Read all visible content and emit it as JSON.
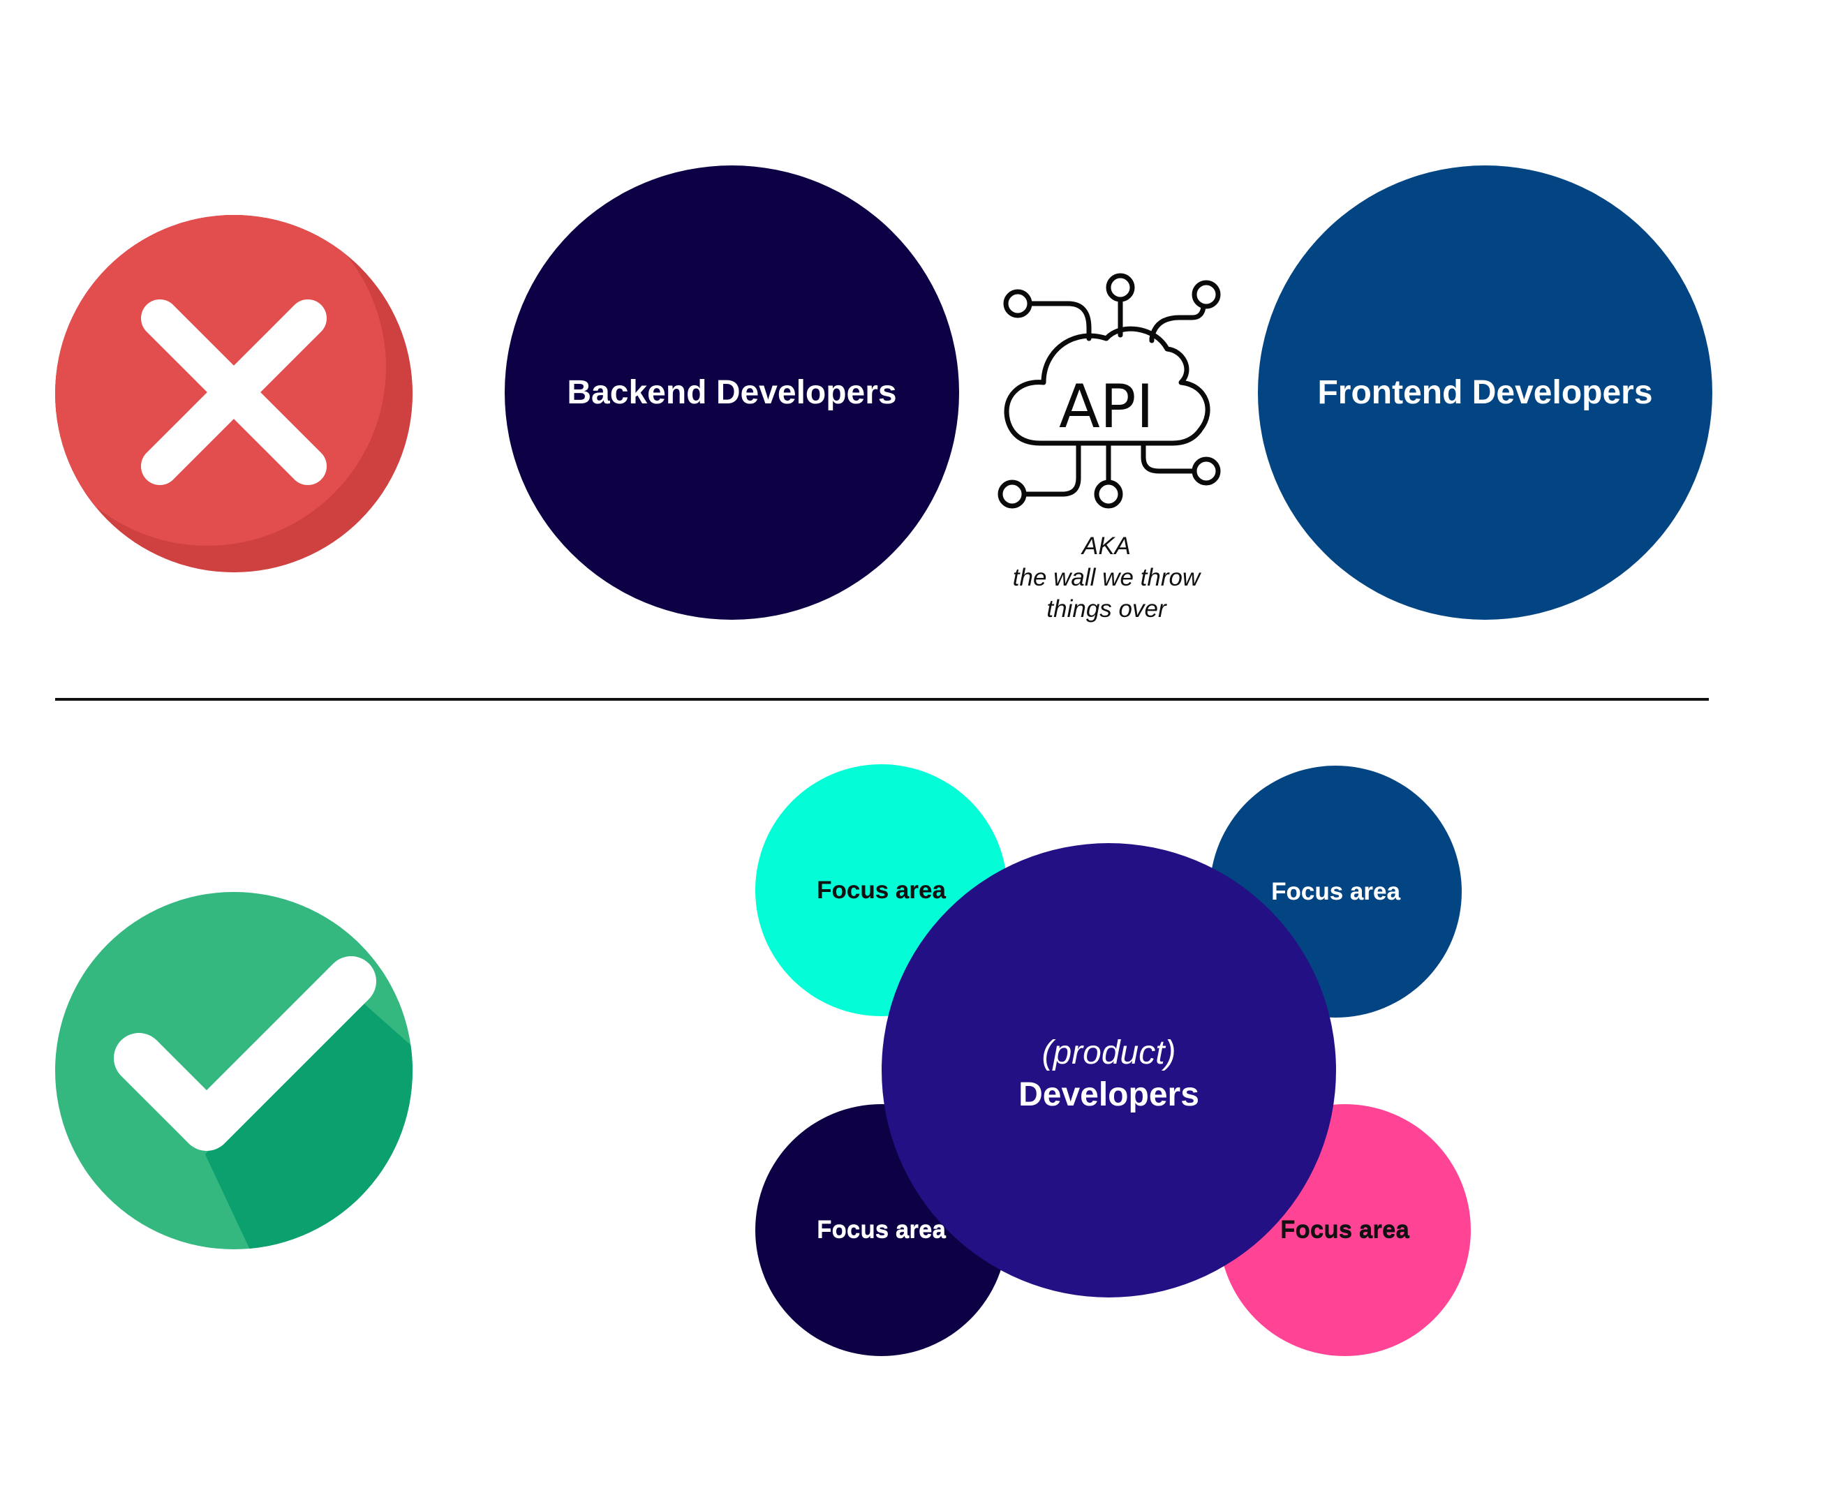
{
  "colors": {
    "cross_red": "#e24e4e",
    "cross_shadow": "#cf4040",
    "check_green": "#34b880",
    "check_shadow": "#0ba06e",
    "backend_navy": "#0d0044",
    "frontend_blue": "#034583",
    "focus_cyan": "#04fdd7",
    "focus_blue": "#034583",
    "focus_navy": "#0d0044",
    "focus_pink": "#ff4496",
    "developers_purple": "#231084",
    "divider": "#111111"
  },
  "top_section": {
    "status_icon": "cross-icon",
    "backend": {
      "label": "Backend Developers"
    },
    "api": {
      "icon": "cloud-api-icon",
      "icon_text": "API",
      "caption_line1": "AKA",
      "caption_line2": "the wall we throw",
      "caption_line3": "things over"
    },
    "frontend": {
      "label": "Frontend Developers"
    }
  },
  "bottom_section": {
    "status_icon": "check-icon",
    "center": {
      "prefix": "(product)",
      "label": "Developers"
    },
    "focus_areas": [
      {
        "label": "Focus area",
        "color": "#04fdd7",
        "text_color": "#111111"
      },
      {
        "label": "Focus area",
        "color": "#034583",
        "text_color": "#ffffff"
      },
      {
        "label": "Focus area",
        "color": "#0d0044",
        "text_color": "#ffffff"
      },
      {
        "label": "Focus area",
        "color": "#ff4496",
        "text_color": "#111111"
      }
    ]
  }
}
